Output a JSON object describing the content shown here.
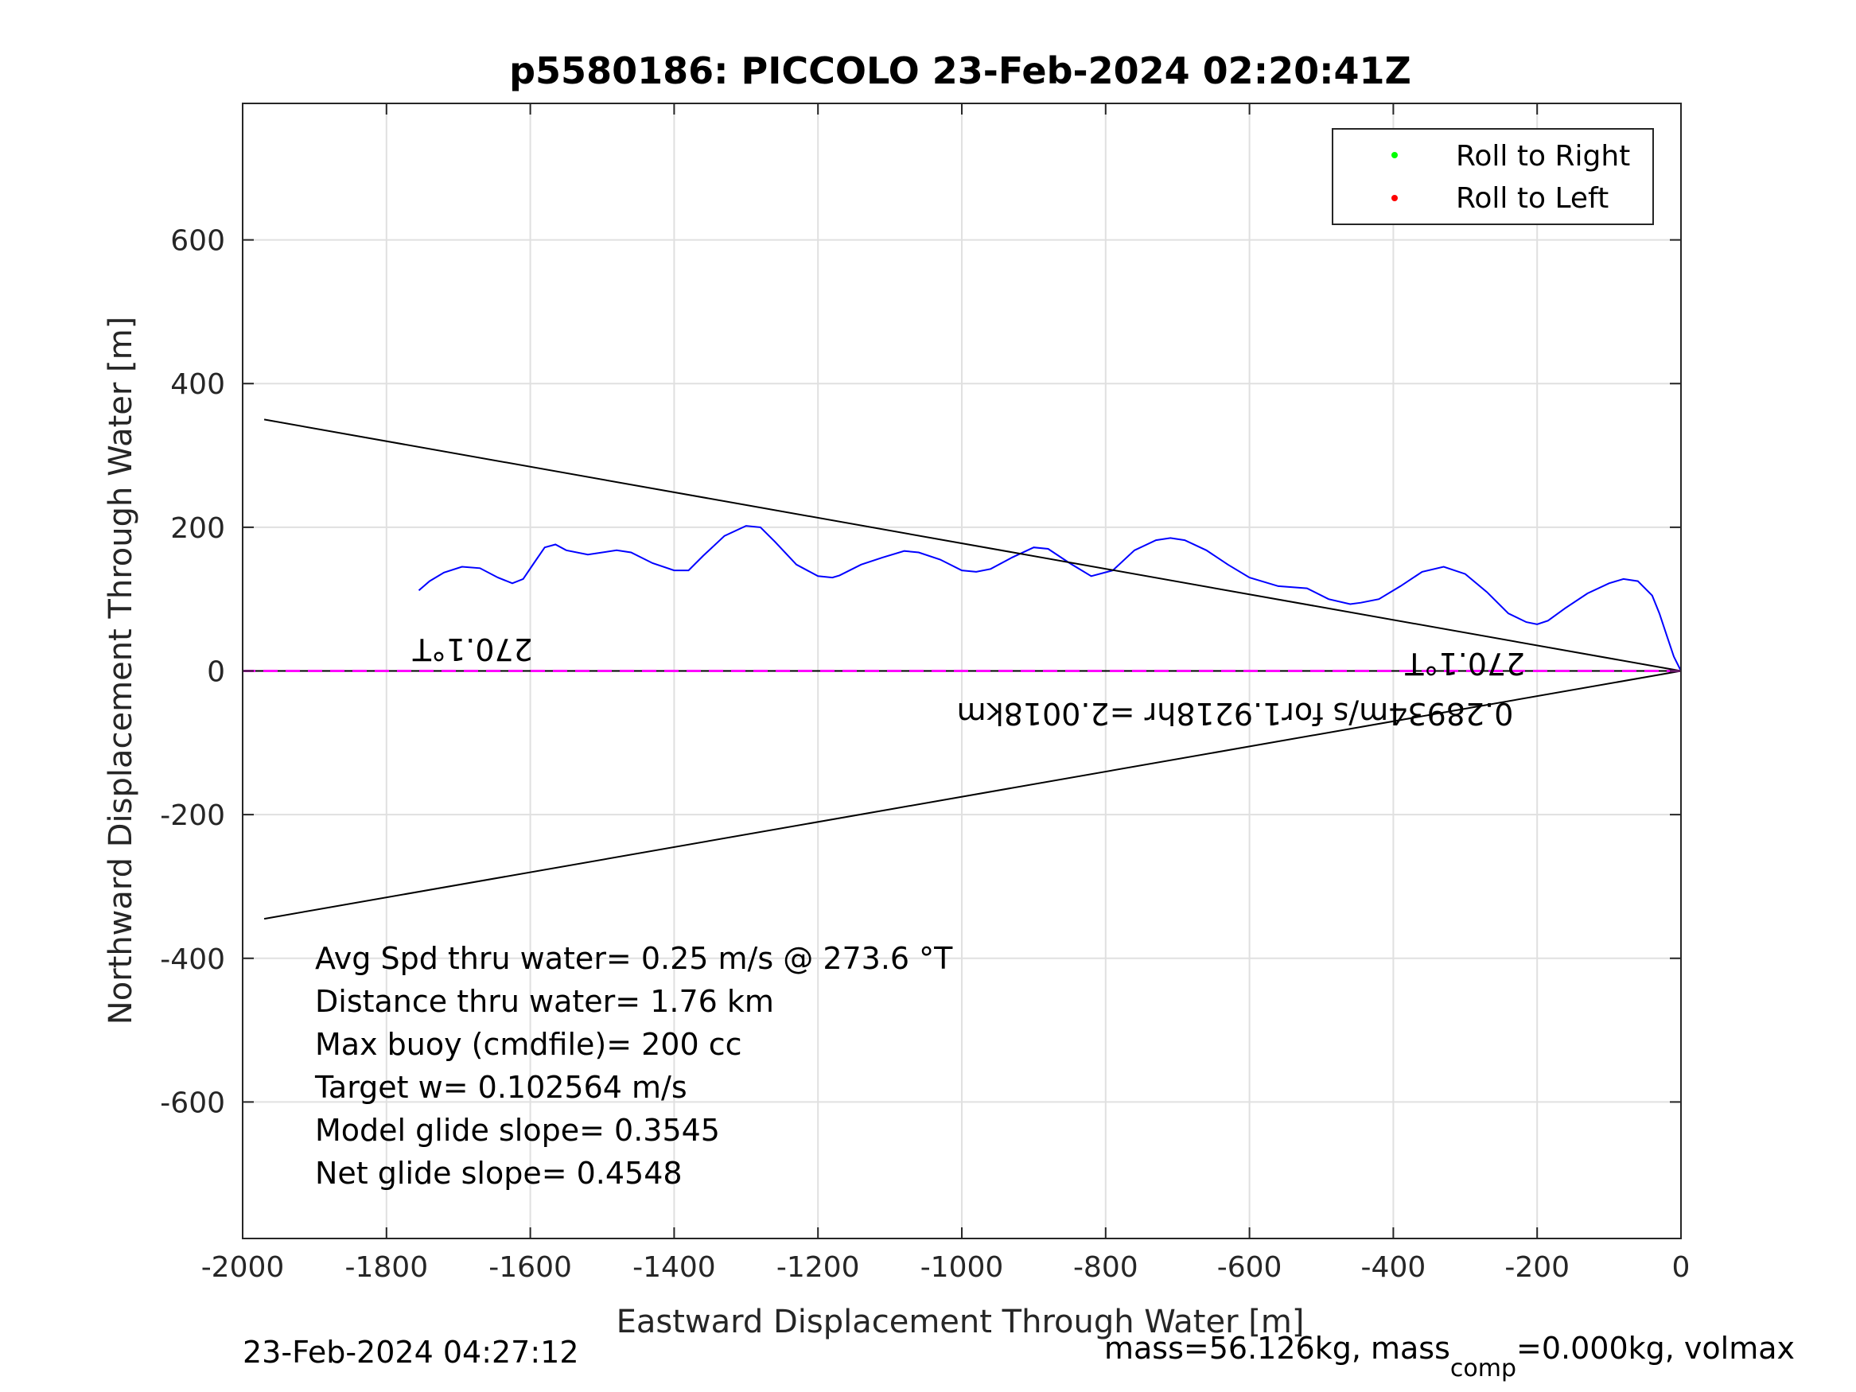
{
  "chart_data": {
    "type": "line",
    "title": "p5580186: PICCOLO 23-Feb-2024 02:20:41Z",
    "xlabel": "Eastward Displacement Through Water [m]",
    "ylabel": "Northward Displacement Through Water [m]",
    "xlim": [
      -2000,
      0
    ],
    "ylim": [
      -790,
      790
    ],
    "xticks": [
      "-2000",
      "-1800",
      "-1600",
      "-1400",
      "-1200",
      "-1000",
      "-800",
      "-600",
      "-400",
      "-200",
      "0"
    ],
    "yticks": [
      "-600",
      "-400",
      "-200",
      "0",
      "200",
      "400",
      "600"
    ],
    "grid": true,
    "legend": {
      "placement": "top-right",
      "entries": [
        {
          "label": "Roll to Right",
          "color": "#00ff00"
        },
        {
          "label": "Roll to Left",
          "color": "#ff0000"
        }
      ]
    },
    "series": [
      {
        "color": "#0000ff",
        "x": [
          0,
          -10,
          -20,
          -30,
          -40,
          -60,
          -80,
          -100,
          -130,
          -160,
          -185,
          -200,
          -215,
          -240,
          -270,
          -300,
          -330,
          -360,
          -390,
          -420,
          -445,
          -460,
          -490,
          -520,
          -560,
          -600,
          -630,
          -660,
          -690,
          -710,
          -730,
          -760,
          -790,
          -820,
          -850,
          -880,
          -900,
          -930,
          -960,
          -980,
          -1000,
          -1030,
          -1060,
          -1080,
          -1110,
          -1140,
          -1170,
          -1180,
          -1200,
          -1230,
          -1260,
          -1280,
          -1300,
          -1330,
          -1360,
          -1380,
          -1400,
          -1430,
          -1460,
          -1480,
          -1520,
          -1550,
          -1565,
          -1580,
          -1595,
          -1610,
          -1625,
          -1645,
          -1670,
          -1695,
          -1720,
          -1740,
          -1755
        ],
        "y": [
          0,
          20,
          50,
          80,
          105,
          125,
          128,
          122,
          108,
          88,
          70,
          65,
          68,
          80,
          110,
          135,
          145,
          138,
          118,
          100,
          95,
          93,
          100,
          115,
          118,
          130,
          148,
          168,
          182,
          185,
          182,
          168,
          140,
          132,
          150,
          170,
          172,
          158,
          142,
          138,
          140,
          155,
          165,
          167,
          158,
          148,
          133,
          130,
          132,
          148,
          180,
          200,
          202,
          188,
          160,
          140,
          140,
          150,
          165,
          168,
          162,
          168,
          176,
          172,
          150,
          128,
          122,
          130,
          143,
          145,
          137,
          125,
          112
        ]
      },
      {
        "color": "#000000",
        "x": [
          0,
          -1970
        ],
        "y": [
          0,
          350
        ]
      },
      {
        "color": "#000000",
        "x": [
          0,
          -1970
        ],
        "y": [
          0,
          -345
        ]
      },
      {
        "color": "#000000",
        "x": [
          0,
          -2000
        ],
        "y": [
          0,
          0
        ]
      },
      {
        "color": "#ff00ff",
        "x": [
          0,
          -2000
        ],
        "y": [
          0,
          0
        ]
      }
    ],
    "annotations": [
      {
        "text": "270.1°T",
        "x": -1680,
        "y": 45,
        "rotated": true
      },
      {
        "text": "270.1°T",
        "x": -300,
        "y": 25,
        "rotated": true
      },
      {
        "text": "0.28934m/s for1.9218hr =2.0018km",
        "x": -620,
        "y": -45,
        "rotated": true
      }
    ],
    "stats": [
      "Avg Spd thru water=  0.25 m/s @ 273.6 °T",
      "Distance thru water=  1.76 km",
      "Max buoy (cmdfile)= 200 cc",
      "Target w= 0.102564 m/s",
      "Model glide slope= 0.3545",
      "Net glide slope= 0.4548"
    ]
  },
  "footer": {
    "timestamp": "23-Feb-2024 04:27:12",
    "mass_prefix": "mass=56.126kg, mass",
    "mass_sub": "comp",
    "mass_suffix": "=0.000kg, volmax"
  }
}
